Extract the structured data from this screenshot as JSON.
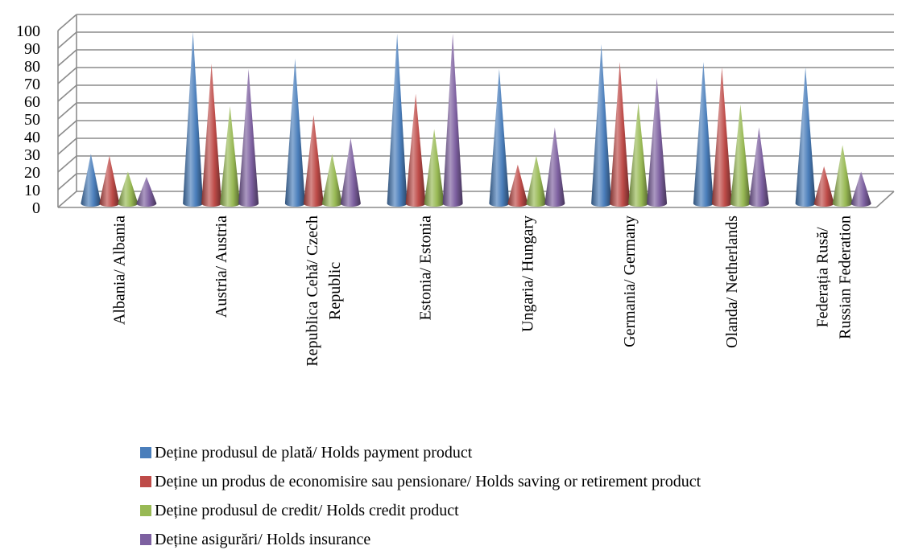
{
  "chart_data": {
    "type": "bar",
    "bar_shape": "cone-3d",
    "categories": [
      [
        "Albania/ Albania"
      ],
      [
        "Austria/ Austria"
      ],
      [
        "Republica Cehă/ Czech",
        "Republic"
      ],
      [
        "Estonia/ Estonia"
      ],
      [
        "Ungaria/ Hungary"
      ],
      [
        "Germania/ Germany"
      ],
      [
        "Olanda/ Netherlands"
      ],
      [
        "Federația Rusă/",
        "Russian Federation"
      ]
    ],
    "series": [
      {
        "name": "Deține produsul de plată/ Holds payment product",
        "color": "#4a7ebb",
        "values": [
          28,
          97,
          82,
          96,
          76,
          90,
          80,
          77
        ]
      },
      {
        "name": "Deține un produs de economisire sau pensionare/ Holds saving or retirement product",
        "color": "#be4b48",
        "values": [
          27,
          79,
          50,
          62,
          22,
          80,
          77,
          21
        ]
      },
      {
        "name": "Deține produsul de credit/ Holds credit product",
        "color": "#98b954",
        "values": [
          18,
          55,
          28,
          42,
          27,
          57,
          56,
          33
        ]
      },
      {
        "name": "Deține asigurări/ Holds insurance",
        "color": "#7d60a0",
        "values": [
          15,
          76,
          37,
          96,
          43,
          71,
          43,
          18
        ]
      }
    ],
    "y_ticks": [
      "0",
      "10",
      "20",
      "30",
      "40",
      "50",
      "60",
      "70",
      "80",
      "90",
      "100"
    ],
    "ylim": [
      0,
      100
    ],
    "grid": true,
    "legend_position": "bottom"
  }
}
